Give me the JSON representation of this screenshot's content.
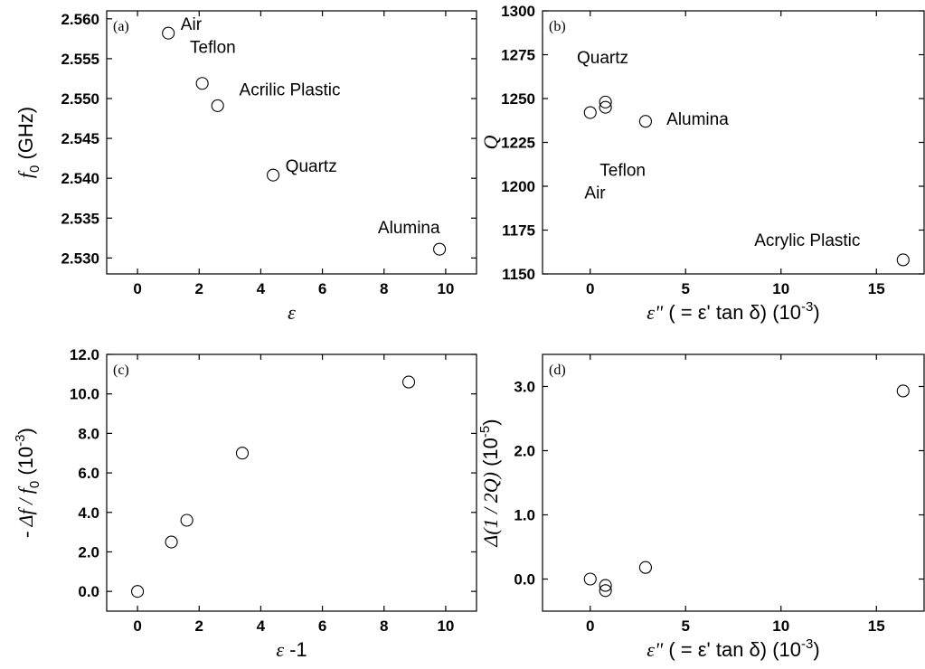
{
  "chart_data": [
    {
      "id": "a",
      "type": "scatter",
      "panel_label": "(a)",
      "ylabel": {
        "sym": "f",
        "sub": "0",
        "rest": " (GHz)"
      },
      "xlabel": {
        "sym": "ε",
        "rest": ""
      },
      "xlim": [
        -1,
        11
      ],
      "ylim": [
        2.528,
        2.561
      ],
      "xticks": [
        0,
        2,
        4,
        6,
        8,
        10
      ],
      "yticks": [
        2.53,
        2.535,
        2.54,
        2.545,
        2.55,
        2.555,
        2.56
      ],
      "ytick_labels": [
        "2.530",
        "2.535",
        "2.540",
        "2.545",
        "2.550",
        "2.555",
        "2.560"
      ],
      "x": [
        1.0,
        2.1,
        2.6,
        4.4,
        9.8
      ],
      "y": [
        2.5582,
        2.5519,
        2.5491,
        2.5404,
        2.5311
      ],
      "annotations": [
        {
          "text": "Air",
          "x": 1.4,
          "y": 2.5586
        },
        {
          "text": "Teflon",
          "x": 1.7,
          "y": 2.5557
        },
        {
          "text": "Acrilic Plastic",
          "x": 3.3,
          "y": 2.5504
        },
        {
          "text": "Quartz",
          "x": 4.8,
          "y": 2.5408
        },
        {
          "text": "Alumina",
          "x": 7.8,
          "y": 2.5331
        }
      ]
    },
    {
      "id": "b",
      "type": "scatter",
      "panel_label": "(b)",
      "ylabel": {
        "sym": "Q",
        "sub": "",
        "rest": ""
      },
      "xlabel": {
        "sym": "ε\"",
        "rest": "  ( = ε' tan δ) (10",
        "sup": "-3",
        "tail": ")"
      },
      "xlim": [
        -2.5,
        17.5
      ],
      "ylim": [
        1150,
        1300
      ],
      "xticks": [
        0,
        5,
        10,
        15
      ],
      "yticks": [
        1150,
        1175,
        1200,
        1225,
        1250,
        1275,
        1300
      ],
      "ytick_labels": [
        "1150",
        "1175",
        "1200",
        "1225",
        "1250",
        "1275",
        "1300"
      ],
      "x": [
        0.0,
        0.8,
        0.8,
        2.9,
        16.4
      ],
      "y": [
        1242,
        1248,
        1245,
        1237,
        1158
      ],
      "annotations": [
        {
          "text": "Quartz",
          "x": -0.7,
          "y": 1270
        },
        {
          "text": "Alumina",
          "x": 4.0,
          "y": 1235
        },
        {
          "text": "Teflon",
          "x": 0.5,
          "y": 1206
        },
        {
          "text": "Air",
          "x": -0.3,
          "y": 1193
        },
        {
          "text": "Acrylic Plastic",
          "x": 8.6,
          "y": 1166
        }
      ]
    },
    {
      "id": "c",
      "type": "scatter",
      "panel_label": "(c)",
      "ylabel": {
        "sym": "- Δf / f",
        "sub": "0",
        "rest": " (10",
        "sup": "-3",
        "tail": ")"
      },
      "xlabel": {
        "sym": "ε",
        "rest": " -1"
      },
      "xlim": [
        -1,
        11
      ],
      "ylim": [
        -1,
        12
      ],
      "xticks": [
        0,
        2,
        4,
        6,
        8,
        10
      ],
      "yticks": [
        0,
        2,
        4,
        6,
        8,
        10,
        12
      ],
      "ytick_labels": [
        "0.0",
        "2.0",
        "4.0",
        "6.0",
        "8.0",
        "10.0",
        "12.0"
      ],
      "x": [
        0.0,
        1.1,
        1.6,
        3.4,
        8.8
      ],
      "y": [
        0.0,
        2.5,
        3.6,
        7.0,
        10.6
      ],
      "annotations": []
    },
    {
      "id": "d",
      "type": "scatter",
      "panel_label": "(d)",
      "ylabel": {
        "sym": "Δ(1 / 2Q)",
        "sub": "",
        "rest": " (10",
        "sup": "-5",
        "tail": ")"
      },
      "xlabel": {
        "sym": "ε\"",
        "rest": "  ( = ε' tan δ) (10",
        "sup": "-3",
        "tail": ")"
      },
      "xlim": [
        -2.5,
        17.5
      ],
      "ylim": [
        -0.5,
        3.5
      ],
      "xticks": [
        0,
        5,
        10,
        15
      ],
      "yticks": [
        0,
        1,
        2,
        3
      ],
      "ytick_labels": [
        "0.0",
        "1.0",
        "2.0",
        "3.0"
      ],
      "x": [
        0.0,
        0.8,
        0.8,
        2.9,
        16.4
      ],
      "y": [
        0.0,
        -0.1,
        -0.18,
        0.18,
        2.93
      ],
      "annotations": []
    }
  ]
}
